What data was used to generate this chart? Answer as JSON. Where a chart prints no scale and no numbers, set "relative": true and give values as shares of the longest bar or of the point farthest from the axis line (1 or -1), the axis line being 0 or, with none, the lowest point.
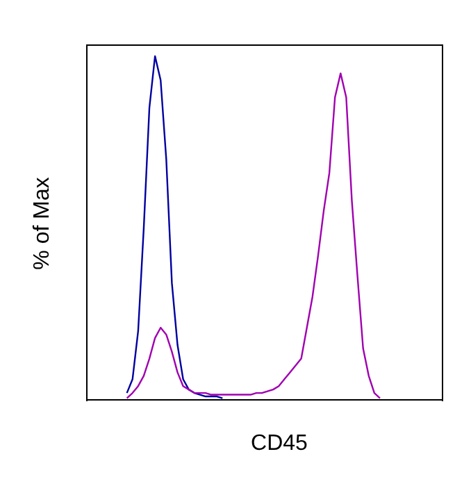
{
  "chart_data": {
    "type": "line",
    "relative": true,
    "xlabel": "CD45",
    "ylabel": "% of Max",
    "marker": "none",
    "legend": false,
    "grid": false,
    "categories": [
      null,
      null,
      null,
      null,
      null,
      null,
      null,
      null,
      null,
      null,
      null,
      null,
      null,
      null,
      null,
      null,
      null,
      null,
      null,
      null,
      null,
      null,
      null,
      null,
      null,
      null,
      null,
      null,
      null,
      null,
      null,
      null,
      null,
      null,
      null,
      null,
      null,
      null,
      null,
      null,
      null,
      null,
      null,
      null,
      null,
      null,
      null,
      null,
      null,
      null,
      null,
      null,
      null,
      null,
      null,
      null,
      null,
      null,
      null,
      null,
      null,
      null,
      null,
      null
    ],
    "series": [
      {
        "color": "#0000a0",
        "values": [
          null,
          null,
          null,
          null,
          null,
          null,
          null,
          0.02,
          0.06,
          0.2,
          0.5,
          0.85,
          1,
          0.93,
          0.7,
          0.34,
          0.16,
          0.06,
          0.03,
          0.02,
          0.015,
          0.01,
          0.01,
          0.01,
          0.005,
          null,
          null,
          null,
          null,
          null,
          null,
          null,
          null,
          null,
          null,
          null,
          null,
          null,
          null,
          null,
          null,
          null,
          null,
          null,
          null,
          null,
          null,
          null,
          null,
          null,
          null,
          null,
          null,
          null,
          null,
          null,
          null,
          null,
          null,
          null,
          null,
          null,
          null,
          null
        ]
      },
      {
        "color": "#a000b0",
        "values": [
          null,
          null,
          null,
          null,
          null,
          null,
          null,
          0.005,
          0.02,
          0.04,
          0.07,
          0.12,
          0.18,
          0.21,
          0.19,
          0.14,
          0.08,
          0.04,
          0.03,
          0.02,
          0.02,
          0.02,
          0.015,
          0.015,
          0.015,
          0.015,
          0.015,
          0.015,
          0.015,
          0.015,
          0.02,
          0.02,
          0.025,
          0.03,
          0.04,
          0.06,
          0.08,
          0.1,
          0.12,
          0.21,
          0.3,
          0.42,
          0.55,
          0.66,
          0.88,
          0.95,
          0.88,
          0.58,
          0.36,
          0.15,
          0.07,
          0.02,
          0.005,
          null,
          null,
          null,
          null,
          null,
          null,
          null,
          null,
          null,
          null,
          null
        ]
      }
    ]
  }
}
